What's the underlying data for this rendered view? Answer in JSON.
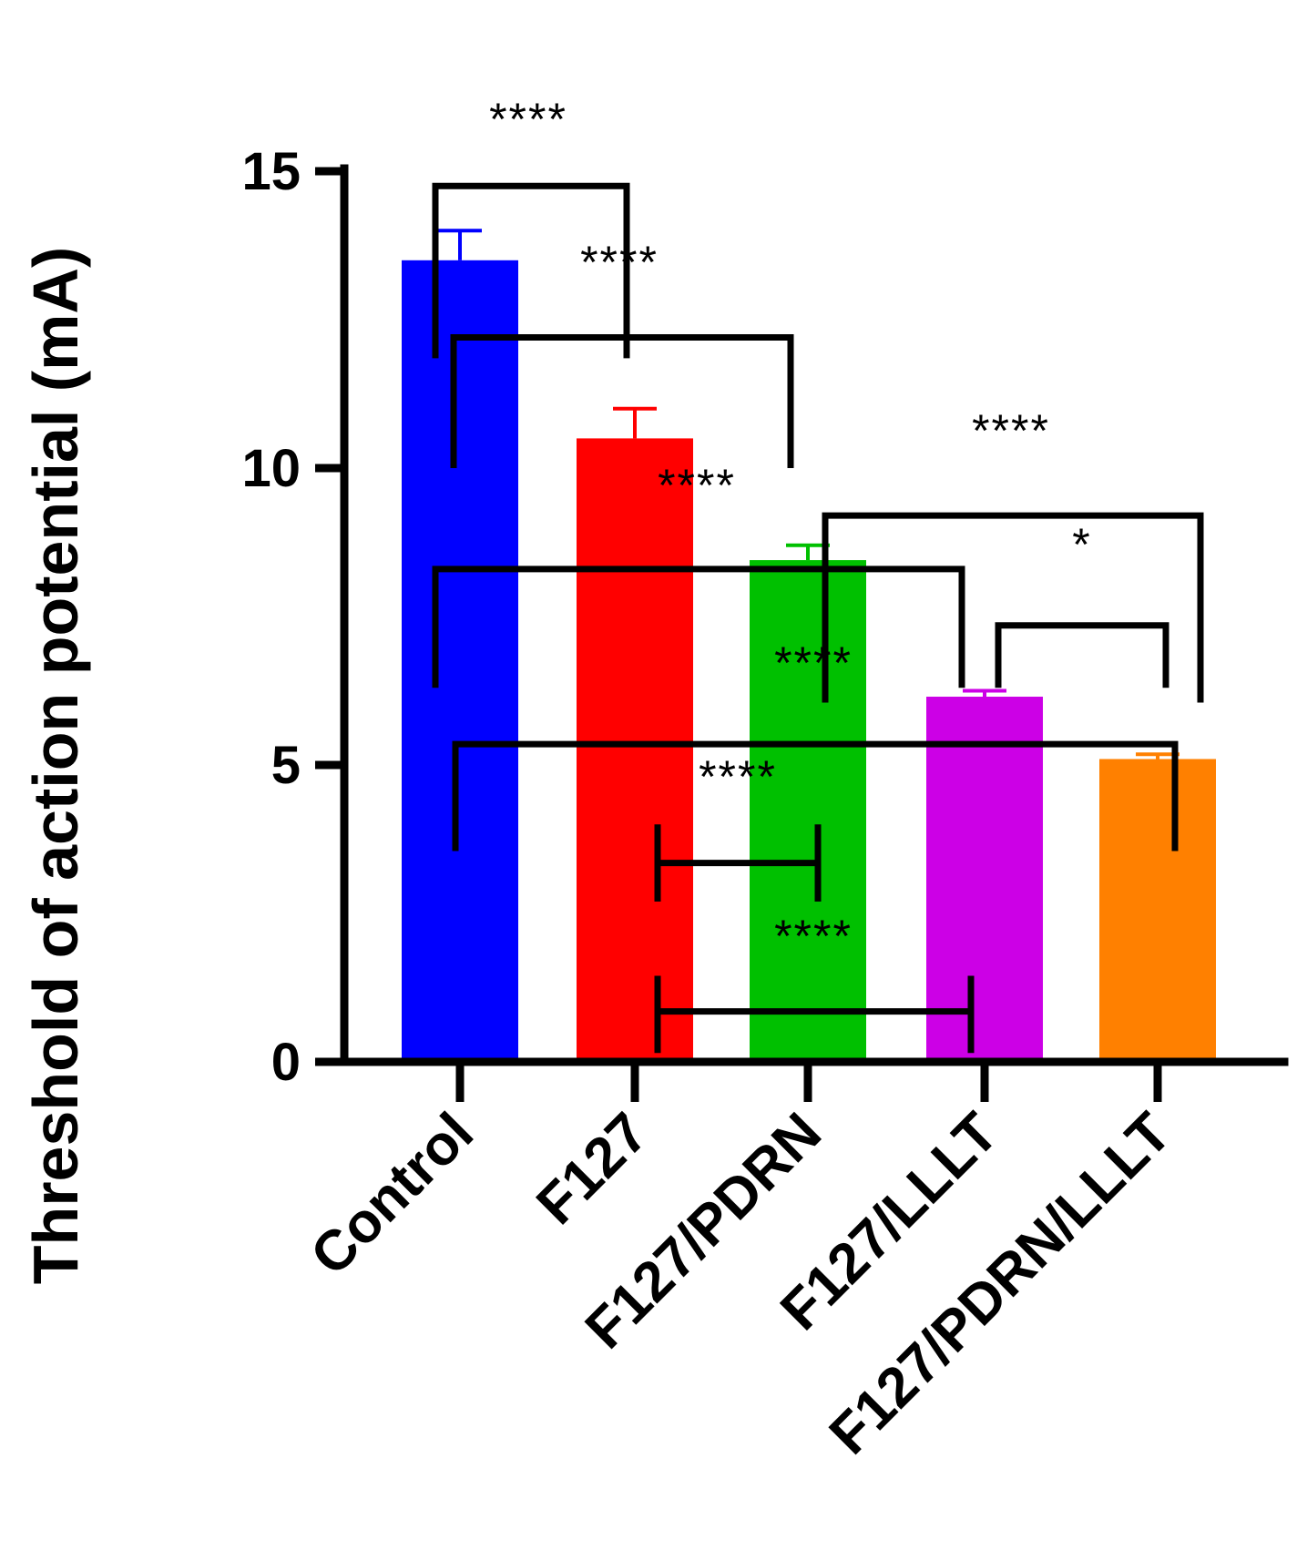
{
  "chart_data": {
    "type": "bar",
    "title": "",
    "xlabel": "",
    "ylabel": "Threshold of action potential (mA)",
    "ylim": [
      0,
      15
    ],
    "yticks": [
      0,
      5,
      10,
      15
    ],
    "grid": false,
    "categories": [
      "Control",
      "F127",
      "F127/PDRN",
      "F127/LLLT",
      "F127/PDRN/LLLT"
    ],
    "values": [
      13.5,
      10.5,
      8.45,
      6.15,
      5.1
    ],
    "errors": [
      0.5,
      0.5,
      0.25,
      0.1,
      0.08
    ],
    "colors": [
      "#0000ff",
      "#ff0000",
      "#00c000",
      "#cc00e6",
      "#ff8000"
    ],
    "significance": [
      {
        "from": "Control",
        "to": "F127",
        "label": "****",
        "level": 14.75
      },
      {
        "from": "Control",
        "to": "F127/PDRN",
        "label": "****",
        "level": 12.2
      },
      {
        "from": "Control",
        "to": "F127/LLLT",
        "label": "****",
        "level": 8.3
      },
      {
        "from": "F127/PDRN",
        "to": "F127/PDRN/LLLT",
        "label": "****",
        "level": 9.2
      },
      {
        "from": "F127/LLLT",
        "to": "F127/PDRN/LLLT",
        "label": "*",
        "level": 7.35
      },
      {
        "from": "Control",
        "to": "F127/PDRN/LLLT",
        "label": "****",
        "level": 5.35
      },
      {
        "from": "F127",
        "to": "F127/PDRN",
        "label": "****",
        "level": 3.35
      },
      {
        "from": "F127",
        "to": "F127/LLLT",
        "label": "****",
        "level": 0.85
      }
    ]
  }
}
